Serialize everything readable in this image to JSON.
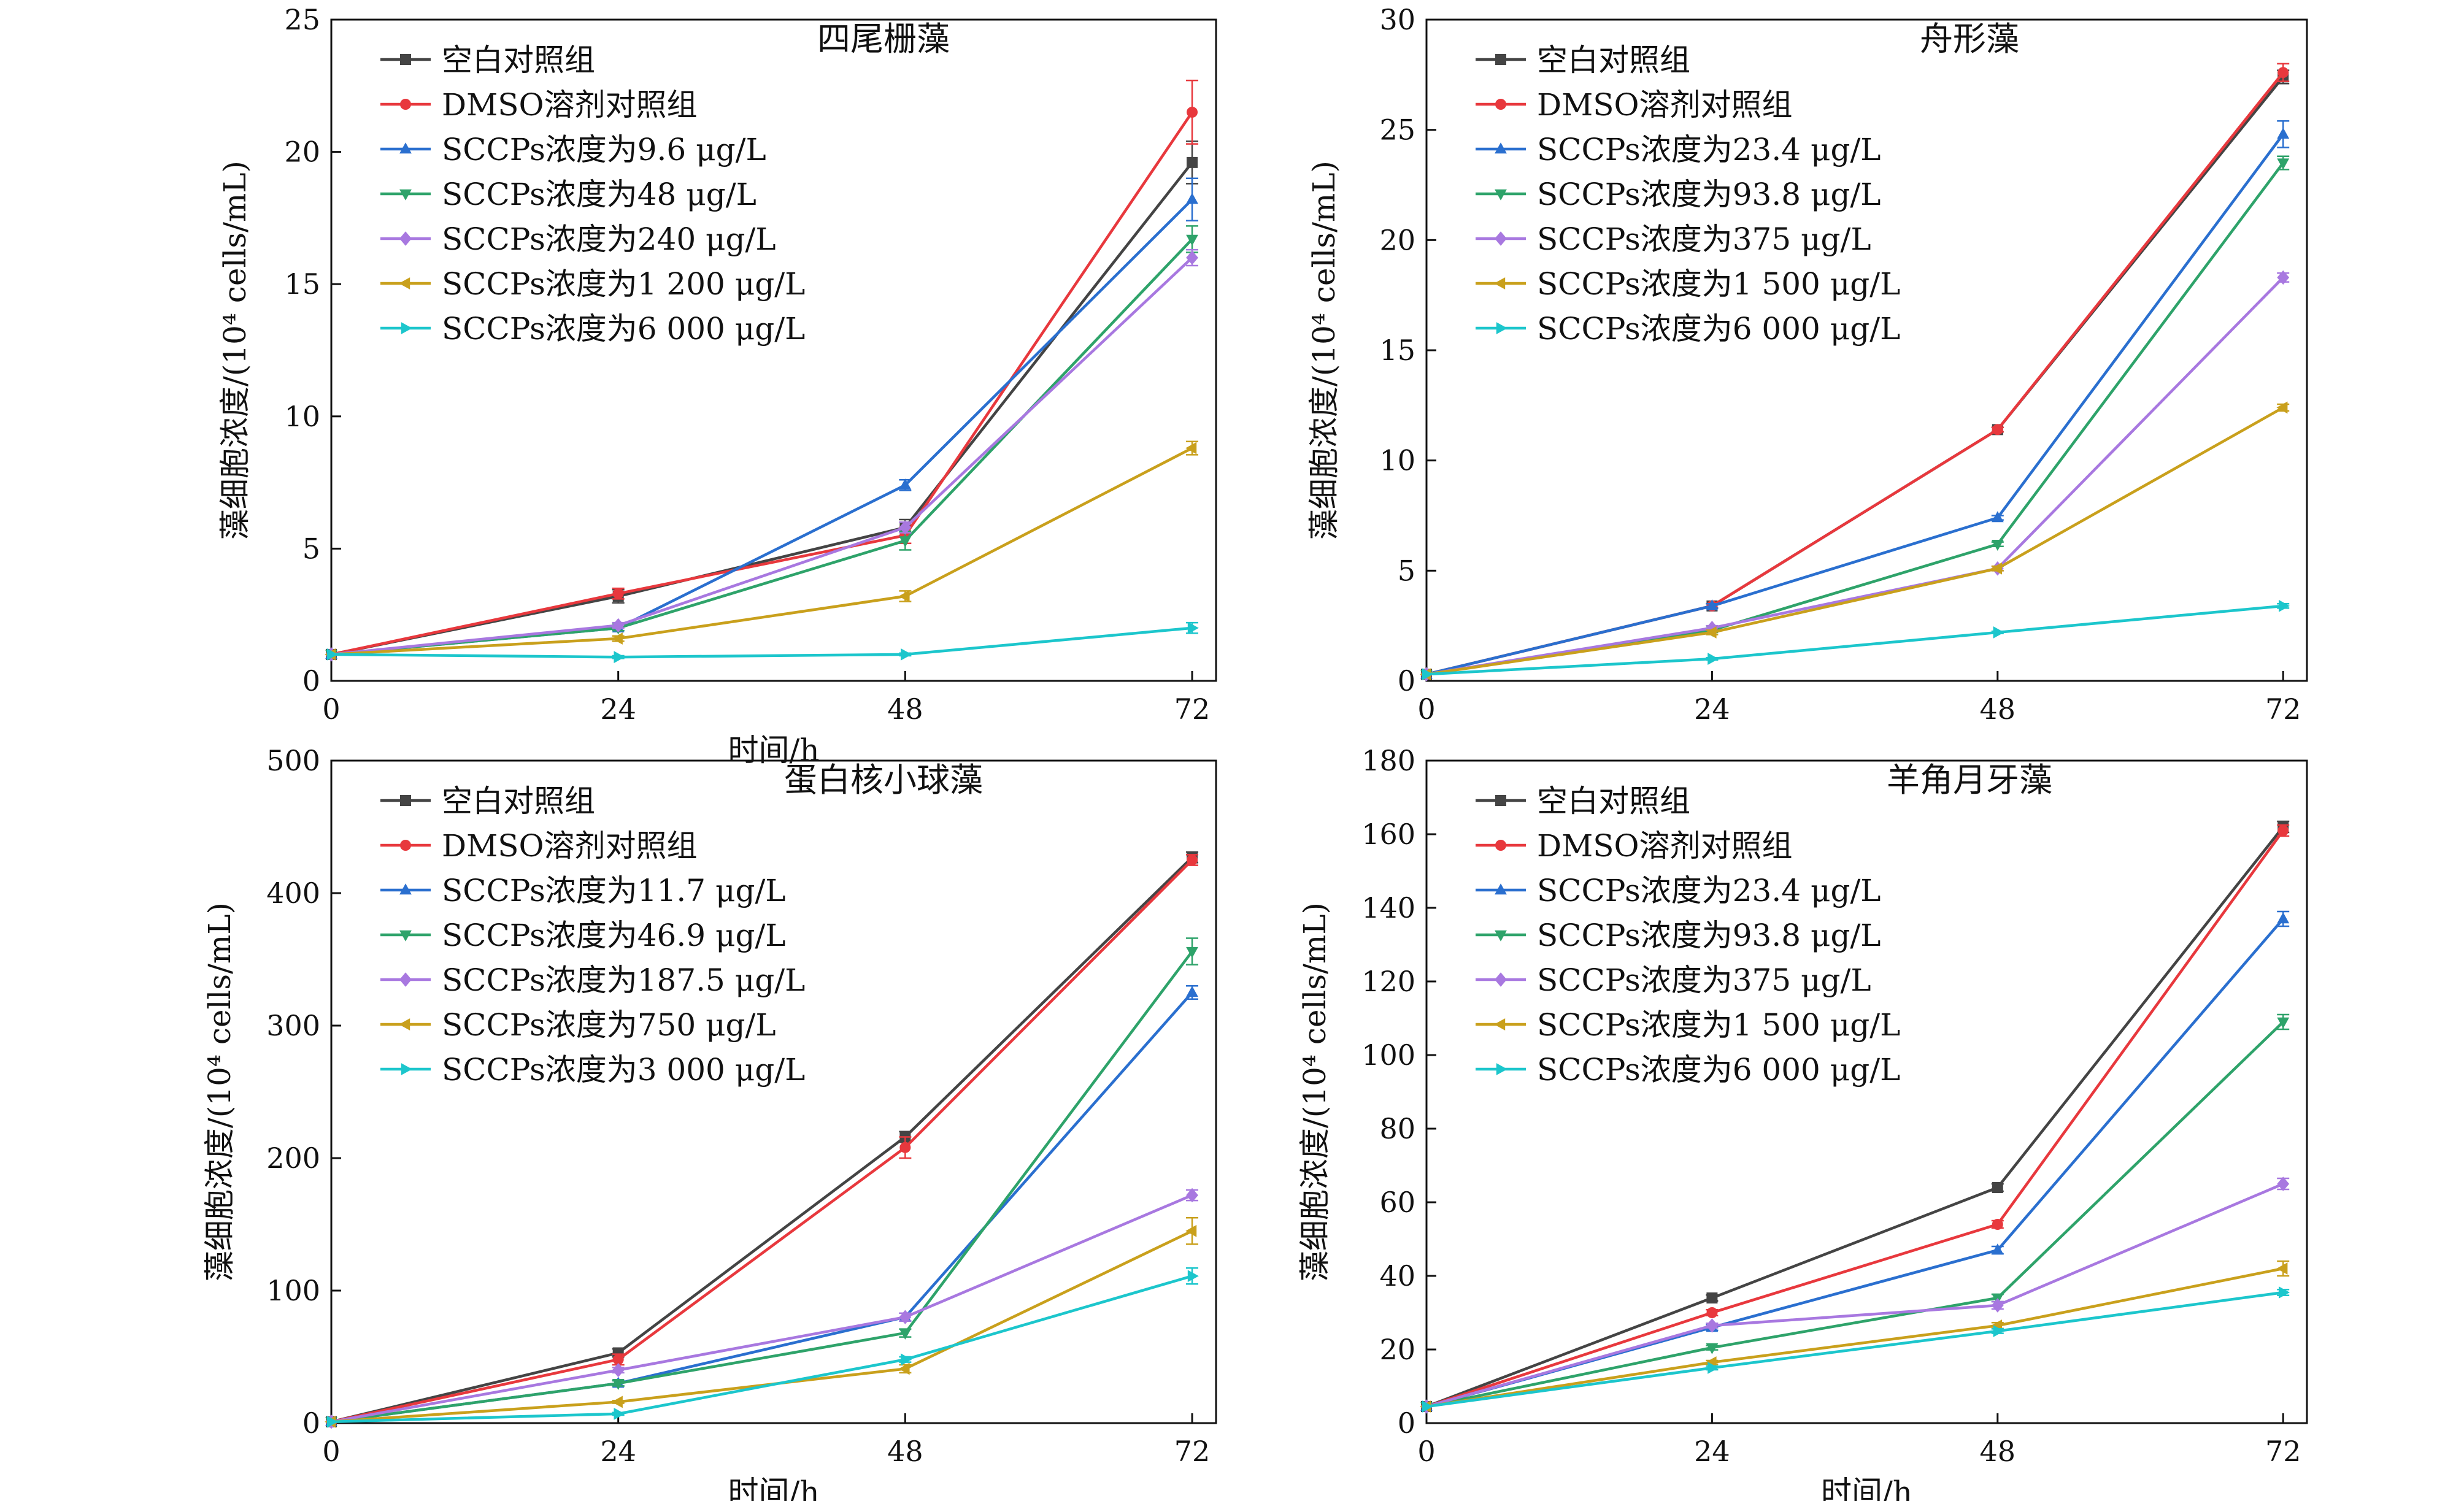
{
  "figure": {
    "colors": {
      "black": "#444444",
      "red": "#e8383d",
      "blue": "#2a6fcf",
      "green": "#2ea36a",
      "violet": "#a878e0",
      "orange": "#c9a01c",
      "cyan": "#1cc6cc"
    },
    "xlabel": "时间/h",
    "ylabel": "藻细胞浓度/(10⁴ cells/mL)"
  },
  "chart_data": [
    {
      "type": "line",
      "title": "四尾栅藻",
      "xlabel": "时间/h",
      "ylabel": "藻细胞浓度/(10⁴ cells/mL)",
      "x": [
        0,
        24,
        48,
        72
      ],
      "xticks": [
        "0",
        "24",
        "48",
        "72"
      ],
      "xlim": [
        0,
        74
      ],
      "ylim": [
        0,
        25
      ],
      "yticks": [
        "0",
        "5",
        "10",
        "15",
        "20",
        "25"
      ],
      "legend": "top-left",
      "grid": false,
      "series": [
        {
          "name": "空白对照组",
          "color": "#444444",
          "marker": "square",
          "values": [
            1.0,
            3.2,
            5.8,
            19.6
          ],
          "errors": [
            0,
            0.25,
            0.3,
            0.8
          ]
        },
        {
          "name": "DMSO溶剂对照组",
          "color": "#e8383d",
          "marker": "circle",
          "values": [
            1.0,
            3.3,
            5.5,
            21.5
          ],
          "errors": [
            0,
            0.2,
            0.3,
            1.2
          ]
        },
        {
          "name": "SCCPs浓度为9.6 μg/L",
          "color": "#2a6fcf",
          "marker": "triangle-up",
          "values": [
            1.0,
            2.0,
            7.4,
            18.2
          ],
          "errors": [
            0,
            0.1,
            0.2,
            0.8
          ]
        },
        {
          "name": "SCCPs浓度为48 μg/L",
          "color": "#2ea36a",
          "marker": "triangle-down",
          "values": [
            1.0,
            2.0,
            5.3,
            16.7
          ],
          "errors": [
            0,
            0.1,
            0.35,
            0.5
          ]
        },
        {
          "name": "SCCPs浓度为240 μg/L",
          "color": "#a878e0",
          "marker": "diamond",
          "values": [
            1.0,
            2.1,
            5.8,
            16.0
          ],
          "errors": [
            0,
            0.1,
            0.2,
            0.3
          ]
        },
        {
          "name": "SCCPs浓度为1 200 μg/L",
          "color": "#c9a01c",
          "marker": "triangle-left",
          "values": [
            1.0,
            1.6,
            3.2,
            8.8
          ],
          "errors": [
            0,
            0.1,
            0.2,
            0.25
          ]
        },
        {
          "name": "SCCPs浓度为6 000 μg/L",
          "color": "#1cc6cc",
          "marker": "triangle-right",
          "values": [
            1.0,
            0.9,
            1.0,
            2.0
          ],
          "errors": [
            0,
            0.05,
            0.05,
            0.2
          ]
        }
      ]
    },
    {
      "type": "line",
      "title": "舟形藻",
      "xlabel": "",
      "ylabel": "藻细胞浓度/(10⁴ cells/mL)",
      "x": [
        0,
        24,
        48,
        72
      ],
      "xticks": [
        "0",
        "24",
        "48",
        "72"
      ],
      "xlim": [
        0,
        74
      ],
      "ylim": [
        0,
        30
      ],
      "yticks": [
        "0",
        "5",
        "10",
        "15",
        "20",
        "25",
        "30"
      ],
      "legend": "top-left",
      "grid": false,
      "series": [
        {
          "name": "空白对照组",
          "color": "#444444",
          "marker": "square",
          "values": [
            0.3,
            3.4,
            11.4,
            27.4
          ],
          "errors": [
            0,
            0.1,
            0.1,
            0.3
          ]
        },
        {
          "name": "DMSO溶剂对照组",
          "color": "#e8383d",
          "marker": "circle",
          "values": [
            0.3,
            3.4,
            11.4,
            27.6
          ],
          "errors": [
            0,
            0.1,
            0.1,
            0.4
          ]
        },
        {
          "name": "SCCPs浓度为23.4 μg/L",
          "color": "#2a6fcf",
          "marker": "triangle-up",
          "values": [
            0.3,
            3.4,
            7.4,
            24.8
          ],
          "errors": [
            0,
            0.1,
            0.1,
            0.6
          ]
        },
        {
          "name": "SCCPs浓度为93.8 μg/L",
          "color": "#2ea36a",
          "marker": "triangle-down",
          "values": [
            0.3,
            2.3,
            6.2,
            23.5
          ],
          "errors": [
            0,
            0.1,
            0.1,
            0.3
          ]
        },
        {
          "name": "SCCPs浓度为375 μg/L",
          "color": "#a878e0",
          "marker": "diamond",
          "values": [
            0.3,
            2.4,
            5.1,
            18.3
          ],
          "errors": [
            0,
            0.1,
            0.1,
            0.2
          ]
        },
        {
          "name": "SCCPs浓度为1 500 μg/L",
          "color": "#c9a01c",
          "marker": "triangle-left",
          "values": [
            0.3,
            2.2,
            5.1,
            12.4
          ],
          "errors": [
            0,
            0.1,
            0.1,
            0.15
          ]
        },
        {
          "name": "SCCPs浓度为6 000 μg/L",
          "color": "#1cc6cc",
          "marker": "triangle-right",
          "values": [
            0.3,
            1.0,
            2.2,
            3.4
          ],
          "errors": [
            0,
            0.05,
            0.05,
            0.1
          ]
        }
      ]
    },
    {
      "type": "line",
      "title": "蛋白核小球藻",
      "xlabel": "时间/h",
      "ylabel": "藻细胞浓度/(10⁴ cells/mL)",
      "x": [
        0,
        24,
        48,
        72
      ],
      "xticks": [
        "0",
        "24",
        "48",
        "72"
      ],
      "xlim": [
        0,
        74
      ],
      "ylim": [
        0,
        500
      ],
      "yticks": [
        "0",
        "100",
        "200",
        "300",
        "400",
        "500"
      ],
      "legend": "top-left",
      "grid": false,
      "series": [
        {
          "name": "空白对照组",
          "color": "#444444",
          "marker": "square",
          "values": [
            1,
            53,
            216,
            427
          ],
          "errors": [
            0,
            3,
            4,
            4
          ]
        },
        {
          "name": "DMSO溶剂对照组",
          "color": "#e8383d",
          "marker": "circle",
          "values": [
            1,
            48,
            208,
            425
          ],
          "errors": [
            0,
            4,
            8,
            4
          ]
        },
        {
          "name": "SCCPs浓度为11.7 μg/L",
          "color": "#2a6fcf",
          "marker": "triangle-up",
          "values": [
            1,
            30,
            80,
            325
          ],
          "errors": [
            0,
            2,
            3,
            5
          ]
        },
        {
          "name": "SCCPs浓度为46.9 μg/L",
          "color": "#2ea36a",
          "marker": "triangle-down",
          "values": [
            1,
            30,
            68,
            356
          ],
          "errors": [
            0,
            2,
            3,
            10
          ]
        },
        {
          "name": "SCCPs浓度为187.5 μg/L",
          "color": "#a878e0",
          "marker": "diamond",
          "values": [
            1,
            40,
            80,
            172
          ],
          "errors": [
            0,
            2,
            3,
            4
          ]
        },
        {
          "name": "SCCPs浓度为750 μg/L",
          "color": "#c9a01c",
          "marker": "triangle-left",
          "values": [
            1,
            16,
            41,
            145
          ],
          "errors": [
            0,
            1,
            3,
            10
          ]
        },
        {
          "name": "SCCPs浓度为3 000 μg/L",
          "color": "#1cc6cc",
          "marker": "triangle-right",
          "values": [
            1,
            7,
            48,
            111
          ],
          "errors": [
            0,
            1,
            2,
            6
          ]
        }
      ]
    },
    {
      "type": "line",
      "title": "羊角月牙藻",
      "xlabel": "时间/h",
      "ylabel": "藻细胞浓度/(10⁴ cells/mL)",
      "x": [
        0,
        24,
        48,
        72
      ],
      "xticks": [
        "0",
        "24",
        "48",
        "72"
      ],
      "xlim": [
        0,
        74
      ],
      "ylim": [
        0,
        180
      ],
      "yticks": [
        "0",
        "20",
        "40",
        "60",
        "80",
        "100",
        "120",
        "140",
        "160",
        "180"
      ],
      "legend": "top-left",
      "grid": false,
      "series": [
        {
          "name": "空白对照组",
          "color": "#444444",
          "marker": "square",
          "values": [
            4.5,
            34,
            64,
            162
          ],
          "errors": [
            0,
            0.8,
            1,
            1.5
          ]
        },
        {
          "name": "DMSO溶剂对照组",
          "color": "#e8383d",
          "marker": "circle",
          "values": [
            4.5,
            30,
            54,
            161
          ],
          "errors": [
            0,
            0.8,
            1,
            1.5
          ]
        },
        {
          "name": "SCCPs浓度为23.4 μg/L",
          "color": "#2a6fcf",
          "marker": "triangle-up",
          "values": [
            4.5,
            26,
            47,
            137
          ],
          "errors": [
            0,
            0.8,
            1,
            2
          ]
        },
        {
          "name": "SCCPs浓度为93.8 μg/L",
          "color": "#2ea36a",
          "marker": "triangle-down",
          "values": [
            4.5,
            20.5,
            34,
            109
          ],
          "errors": [
            0,
            0.6,
            1,
            2
          ]
        },
        {
          "name": "SCCPs浓度为375 μg/L",
          "color": "#a878e0",
          "marker": "diamond",
          "values": [
            4.5,
            26.5,
            32,
            65
          ],
          "errors": [
            0,
            0.6,
            1,
            1.5
          ]
        },
        {
          "name": "SCCPs浓度为1 500 μg/L",
          "color": "#c9a01c",
          "marker": "triangle-left",
          "values": [
            4.5,
            16.5,
            26.5,
            42
          ],
          "errors": [
            0,
            0.5,
            0.8,
            2
          ]
        },
        {
          "name": "SCCPs浓度为6 000 μg/L",
          "color": "#1cc6cc",
          "marker": "triangle-right",
          "values": [
            4.5,
            15,
            25,
            35.5
          ],
          "errors": [
            0,
            0.5,
            0.6,
            0.8
          ]
        }
      ]
    }
  ]
}
